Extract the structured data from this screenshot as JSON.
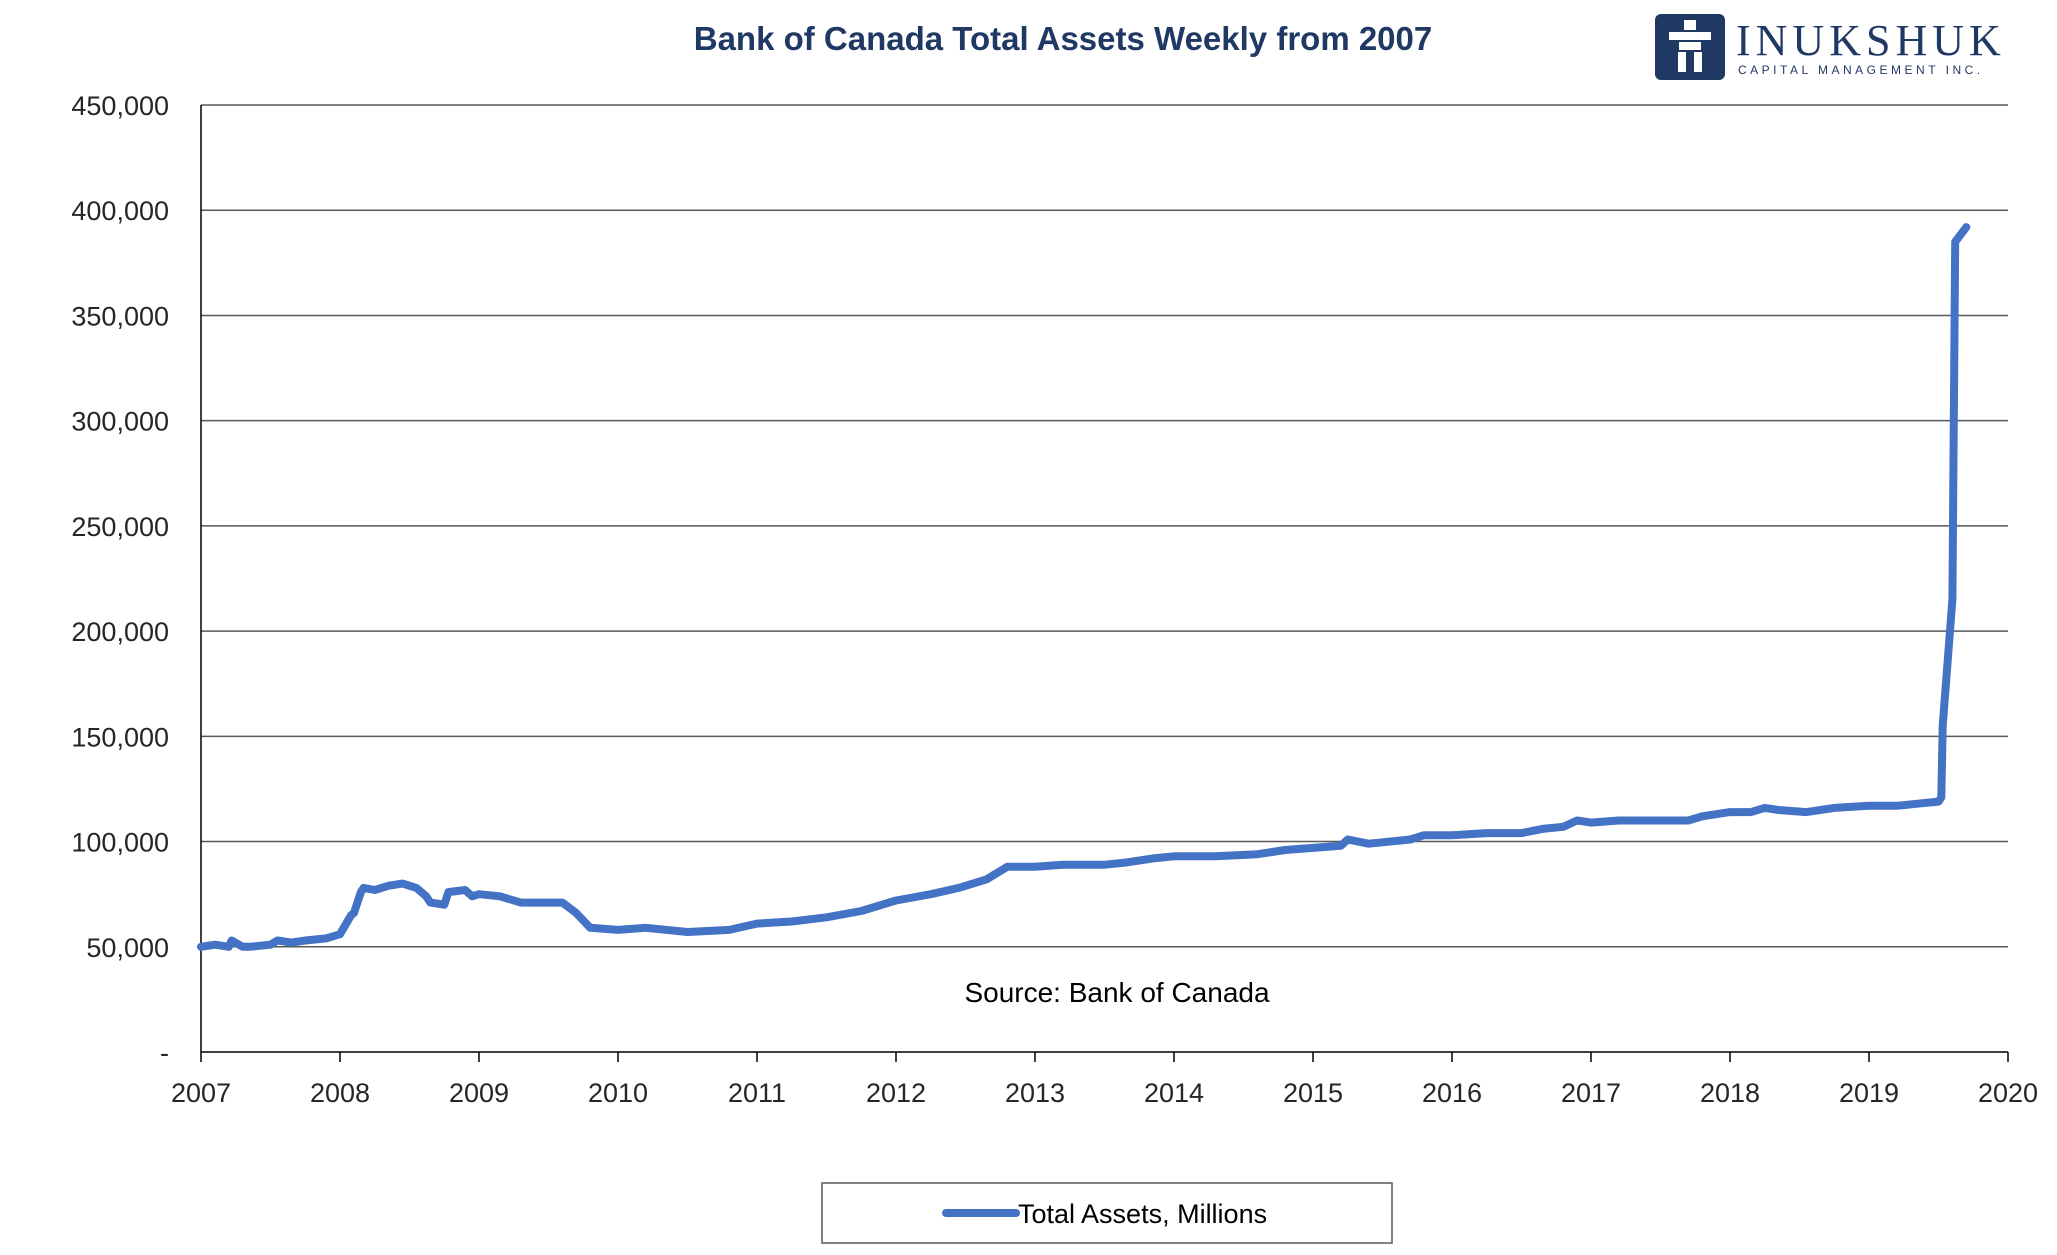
{
  "logo": {
    "name": "INUKSHUK",
    "tagline": "CAPITAL MANAGEMENT INC.",
    "color": "#1f3864"
  },
  "chart_data": {
    "type": "line",
    "title": "Bank of Canada Total Assets Weekly from 2007",
    "xlabel": "",
    "ylabel": "",
    "annotation": "Source: Bank of Canada",
    "xlim": [
      2007,
      2020
    ],
    "ylim": [
      0,
      450000
    ],
    "x_ticks": [
      "2007",
      "2008",
      "2009",
      "2010",
      "2011",
      "2012",
      "2013",
      "2014",
      "2015",
      "2016",
      "2017",
      "2018",
      "2019",
      "2020"
    ],
    "y_ticks": [
      "-",
      "50,000",
      "100,000",
      "150,000",
      "200,000",
      "250,000",
      "300,000",
      "350,000",
      "400,000",
      "450,000"
    ],
    "grid": "horizontal",
    "legend_position": "bottom",
    "series": [
      {
        "name": "Total Assets, Millions",
        "color": "#4472c4",
        "x": [
          2007.0,
          2007.1,
          2007.2,
          2007.22,
          2007.3,
          2007.35,
          2007.5,
          2007.55,
          2007.65,
          2007.75,
          2007.9,
          2008.0,
          2008.08,
          2008.1,
          2008.15,
          2008.17,
          2008.25,
          2008.35,
          2008.45,
          2008.55,
          2008.62,
          2008.65,
          2008.75,
          2008.78,
          2008.9,
          2008.95,
          2009.0,
          2009.15,
          2009.3,
          2009.5,
          2009.6,
          2009.7,
          2009.8,
          2010.0,
          2010.2,
          2010.5,
          2010.8,
          2011.0,
          2011.25,
          2011.5,
          2011.75,
          2012.0,
          2012.25,
          2012.45,
          2012.65,
          2012.8,
          2013.0,
          2013.2,
          2013.5,
          2013.65,
          2013.85,
          2014.0,
          2014.3,
          2014.6,
          2014.8,
          2015.0,
          2015.2,
          2015.25,
          2015.4,
          2015.7,
          2015.8,
          2016.0,
          2016.25,
          2016.5,
          2016.65,
          2016.8,
          2016.9,
          2017.0,
          2017.2,
          2017.5,
          2017.7,
          2017.8,
          2018.0,
          2018.15,
          2018.25,
          2018.35,
          2018.55,
          2018.75,
          2019.0,
          2019.2,
          2019.35,
          2019.5,
          2019.52,
          2019.53,
          2019.6,
          2019.62,
          2019.7
        ],
        "values": [
          50000,
          51000,
          50000,
          53000,
          50000,
          50000,
          51000,
          53000,
          52000,
          53000,
          54000,
          56000,
          65000,
          66000,
          76000,
          78000,
          77000,
          79000,
          80000,
          78000,
          74000,
          71000,
          70000,
          76000,
          77000,
          74000,
          75000,
          74000,
          71000,
          71000,
          71000,
          66000,
          59000,
          58000,
          59000,
          57000,
          58000,
          61000,
          62000,
          64000,
          67000,
          72000,
          75000,
          78000,
          82000,
          88000,
          88000,
          89000,
          89000,
          90000,
          92000,
          93000,
          93000,
          94000,
          96000,
          97000,
          98000,
          101000,
          99000,
          101000,
          103000,
          103000,
          104000,
          104000,
          106000,
          107000,
          110000,
          109000,
          110000,
          110000,
          110000,
          112000,
          114000,
          114000,
          116000,
          115000,
          114000,
          116000,
          117000,
          117000,
          118000,
          119000,
          121000,
          155000,
          215000,
          385000,
          392000
        ]
      }
    ]
  }
}
